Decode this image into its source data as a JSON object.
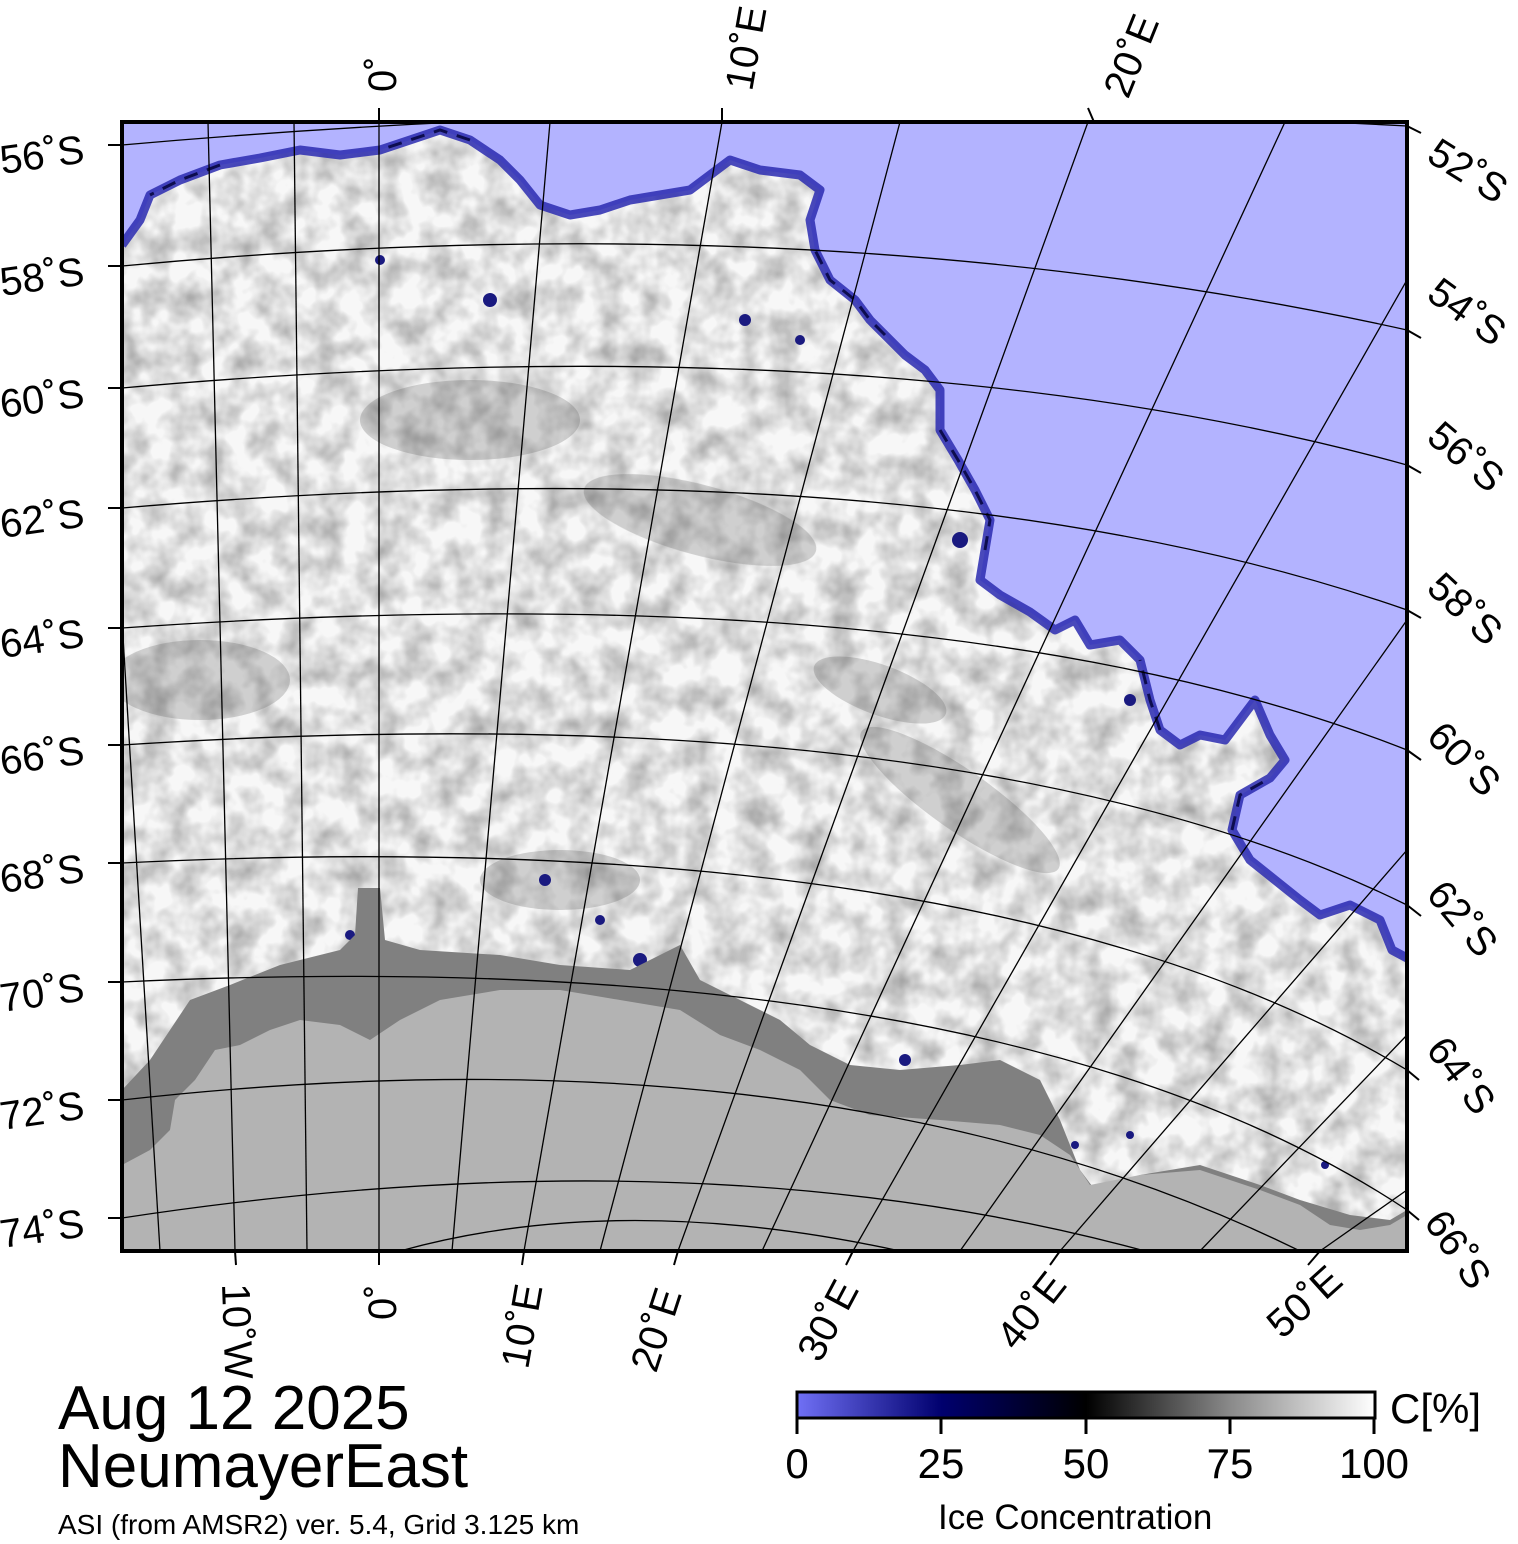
{
  "date": "Aug 12 2025",
  "region": "NeumayerEast",
  "product": "ASI (from AMSR2) ver. 5.4,  Grid 3.125 km",
  "legend": {
    "title": "Ice Concentration",
    "unit": "C[%]",
    "ticks": [
      "0",
      "25",
      "50",
      "75",
      "100"
    ],
    "colors": {
      "open_water": "#b3b3ff",
      "low": "#6e6ef2",
      "mid_low": "#000066",
      "mid": "#000000",
      "high": "#ffffff",
      "land": "#b3b3b3",
      "ice_shelf": "#808080"
    }
  },
  "graticule": {
    "left_lat_labels": [
      "56˚S",
      "58˚S",
      "60˚S",
      "62˚S",
      "64˚S",
      "66˚S",
      "68˚S",
      "70˚S",
      "72˚S",
      "74˚S"
    ],
    "right_lat_labels": [
      "52˚S",
      "54˚S",
      "56˚S",
      "58˚S",
      "60˚S",
      "62˚S",
      "64˚S",
      "66˚S"
    ],
    "top_lon_labels": [
      "0˚",
      "10˚E",
      "20˚E"
    ],
    "bottom_lon_labels": [
      "10˚W",
      "0˚",
      "10˚E",
      "20˚E",
      "30˚E",
      "40˚E",
      "50˚E"
    ]
  }
}
